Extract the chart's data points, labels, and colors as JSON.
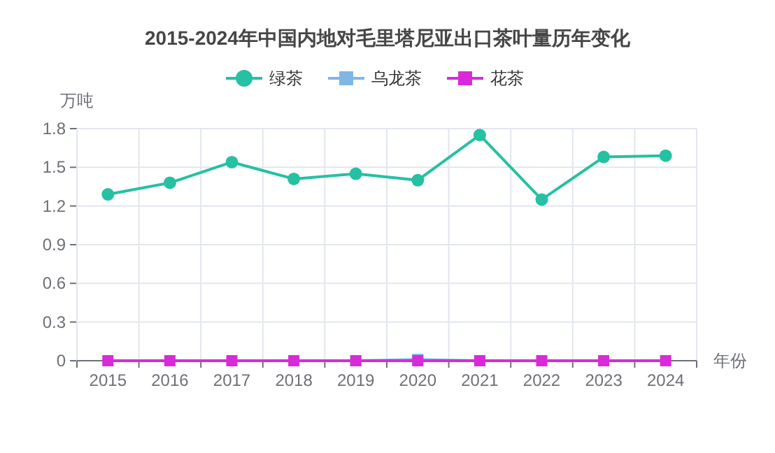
{
  "chart_data": {
    "type": "line",
    "title": "2015-2024年中国内地对毛里塔尼亚出口茶叶量历年变化",
    "xlabel": "年份",
    "ylabel": "万吨",
    "categories": [
      "2015",
      "2016",
      "2017",
      "2018",
      "2019",
      "2020",
      "2021",
      "2022",
      "2023",
      "2024"
    ],
    "series": [
      {
        "name": "绿茶",
        "color": "#26c0a3",
        "marker": "circle",
        "values": [
          1.29,
          1.38,
          1.54,
          1.41,
          1.45,
          1.4,
          1.75,
          1.25,
          1.58,
          1.59
        ]
      },
      {
        "name": "乌龙茶",
        "color": "#7eb6e8",
        "marker": "square",
        "values": [
          null,
          null,
          null,
          null,
          0,
          0.01,
          0,
          null,
          null,
          null
        ]
      },
      {
        "name": "花茶",
        "color": "#d92ad9",
        "marker": "square",
        "values": [
          0,
          0,
          0,
          0,
          0,
          0,
          0,
          0,
          0,
          0
        ]
      }
    ],
    "ylim": [
      0,
      1.8
    ],
    "yticks": [
      0,
      0.3,
      0.6,
      0.9,
      1.2,
      1.5,
      1.8
    ],
    "grid": true,
    "legend": "top",
    "line_style": "solid"
  }
}
